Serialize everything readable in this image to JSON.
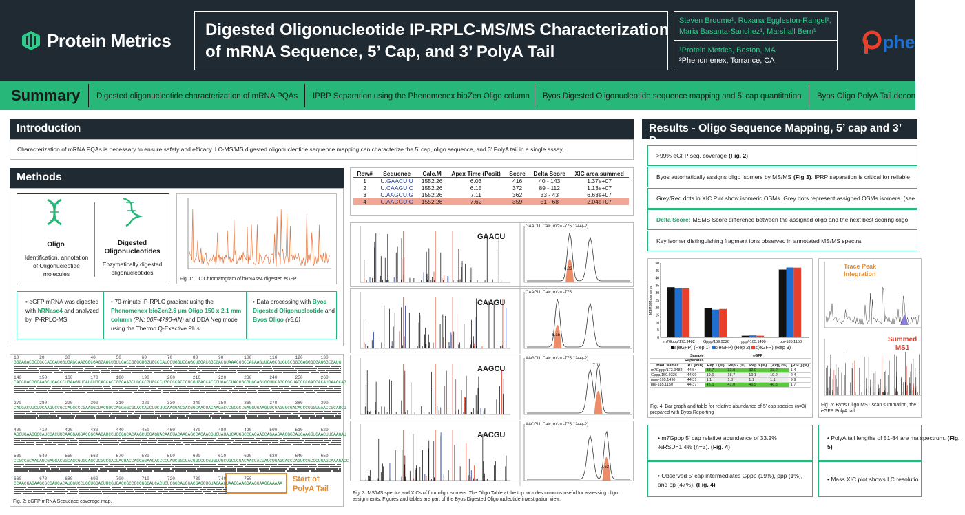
{
  "header": {
    "brand": "Protein Metrics",
    "title_line1": "Digested Oligonucleotide IP-RPLC-MS/MS Characterization",
    "title_line2": "of mRNA Sequence, 5’ Cap, and 3’ PolyA Tail",
    "authors_line1": "Steven Broome¹, Roxana Eggleston-Rangel², ",
    "authors_line2": "Maria Basanta-Sanchez¹, Marshall Bern¹",
    "affil_1": "¹Protein Metrics, Boston, MA",
    "affil_2": "²Phenomenex, Torrance, CA",
    "partner_logo_text": "phe"
  },
  "summary": {
    "title": "Summary",
    "items": [
      "Digested oligonucleotide characterization of mRNA PQAs",
      "IPRP Separation using the Phenomenex bioZen Oligo column",
      "Byos Digested Oligonucleotide sequence mapping and 5’ cap quantitation",
      "Byos Oligo PolyA Tail decon"
    ]
  },
  "introduction": {
    "heading": "Introduction",
    "text": "Characterization of mRNA PQAs is necessary to ensure safety and efficacy. LC-MS/MS digested oligonucleotide sequence mapping can characterize the 5’ cap, oligo sequence, and 3’ PolyA tail in a single assay."
  },
  "methods": {
    "heading": "Methods",
    "oligo_title": "Oligo",
    "oligo_desc": "Identification, annotation of Oligonucleotide molecules",
    "digested_title": "Digested Oligonucleotides",
    "digested_desc": "Enzymatically digested oligonucleotides",
    "fig1_caption": "Fig. 1: TIC Chromatogram of hRNAse4 digested eGFP.",
    "bullet1_a": "eGFP mRNA was digested with ",
    "bullet1_b": "hRNase4",
    "bullet1_c": " and analyzed by IP-RPLC-MS",
    "bullet2_a": "70-minute IP-RPLC gradient using the ",
    "bullet2_b": "Phenomenex bioZen2.6 µm Oligo 150 x 2.1 mm column",
    "bullet2_c": " (PN: 00F-4790-AN)",
    "bullet2_d": " and DDA Neg mode using the Thermo Q-Exactive Plus",
    "bullet3_a": "Data processing with ",
    "bullet3_b": "Byos Digested Oligonucleotide",
    "bullet3_c": " and ",
    "bullet3_d": "Byos Oligo",
    "bullet3_e": " (v5.6)"
  },
  "seqmap": {
    "lines": [
      "GGGAGACGCCGCCACCAUGGUGAGCAAGGGCGAGGAGCUGUUCACCGGGGUGGUGCCCAUCCUGGUCGAGCUGGACGGCGACGUAAACGGCCACAAGUUCAGCGUGUCCGGCGAGGGCGAGGGCGAUG",
      "CACCUACGGCAAGCUGACCCUGAAGUUCAUCUGCACCACCGGCAAGCUGCCCGUGCCCUGGCCCACCCUCGUGACCACCCUGACCUACGGCGUGCAGUGCUUCAGCCGCUACCCCGACCACAUGAAGCAG",
      "CACGACUUCUUCAAGUCCGCCAUGCCCGAAGGCUACGUCCAGGAGCGCACCAUCUUCUUCAAGGACGACGGCAACUACAAGACCCGCGCCGAGGUGAAGUUCGAGGGCGACACCCUGGUGAACCGCAUCG",
      "AGCUGAAGGGCAUCGACUUCAAGGAGGACGGCAACAUCCUGGGGCACAAGCUGGAGUACAACUACAACAGCCACAACGUCUAUAUCAUGGCCGACAAGCAGAAGAACGGCAUCAAGGUGAACUUCAAGAU",
      "CCGCCACAACAUCGAGGACGGCAGCGUGCAGCUCGCCGACCACUACCAGCAGAACACCCCCAUCGGCGACGGCCCCGUGCUGCUGCCCGACAACCACUACCUGAGCACCCAGUCCGCCCUGAGCAAAGACC",
      "CCAACGAGAAGCGCGAUCACAUGGUCCUGCUGGAGUUCGUGACCGCCGCCGGGAUCACUCUCGGCAUGGACGAGCUGUACAAGUAAGGAAGGAAGGAAGGAAAAA"
    ],
    "nums": [
      "10        20        30        40        50        60        70        80        90        100       110       120       130",
      "140       150       160       170       180       190       200       210       220       230       240       250       260",
      "270       280       290       300       310       320       330       340       350       360       370       380       390",
      "400       410       420       430       440       450       460       470       480       490       500       510       520",
      "530       540       550       560       570       580       590       600       610       620       630       640       650",
      "660       670       680       690       700       710       720       730       740       750"
    ],
    "polya_label_1": "Start of",
    "polya_label_2": "PolyA Tail",
    "fig2_caption": "Fig. 2: eGFP mRNA Sequence coverage map."
  },
  "oligo_table": {
    "headers": [
      "Row#",
      "Sequence",
      "Calc.M",
      "Apex Time (Posit)",
      "Score",
      "Delta Score",
      "XIC area summed"
    ],
    "rows": [
      [
        "1",
        "U.GAACU.U",
        "1552.26",
        "6.03",
        "416",
        "40 - 143",
        "1.37e+07"
      ],
      [
        "2",
        "U.CAAGU.C",
        "1552.26",
        "6.15",
        "372",
        "89 - 112",
        "1.13e+07"
      ],
      [
        "3",
        "C.AAGCU.G",
        "1552.26",
        "7.11",
        "362",
        "33 - 43",
        "6.63e+07"
      ],
      [
        "4",
        "C.AACGU.C",
        "1552.26",
        "7.62",
        "359",
        "51 - 68",
        "2.04e+07"
      ]
    ]
  },
  "msms": {
    "labels": [
      "GAACU",
      "CAAGU",
      "AAGCU",
      "AACGU"
    ],
    "xic_titles": [
      "GAACU, Calc. m/z= -775.1244(-2)",
      "CAAGU, Calc. m/z= -775",
      "AAGCU, Calc. m/z= -775.1244(-2)",
      "AACGU, Calc. m/z= -775.1244(-2)"
    ],
    "times": [
      "6.03",
      "6.15",
      "7.11",
      "7.62"
    ],
    "fig3_caption": "Fig. 3: MS/MS spectra and XICs of four oligo isomers. The Oligo Table at the top includes columns useful for assessing oligo assignments. Figures and tables are part of the Byos Digested Oligonucleotide investigation view."
  },
  "results": {
    "heading": "Results  - Oligo Sequence Mapping, 5’ cap and 3’ P",
    "items": [
      ">99% eGFP seq. coverage ",
      "Byos automatically assigns oligo isomers by MS/MS ",
      "Grey/Red dots in XIC Plot show isomeric OSMs. Grey dots represent assigned OSMs isomers. (see",
      "MSMS Score difference between the assigned oligo and the next best scoring oligo.",
      "Key isomer distinguishing fragment ions observed in annotated MS/MS spectra."
    ],
    "item1_ref": "(Fig. 2)",
    "item2_ref": "(Fig 3)",
    "item2_tail": ". IPRP separation is critical for reliable",
    "delta_label": "Delta Score:",
    "fig4_caption": "Fig. 4: Bar graph and table for relative abundance of 5’ cap species (n=3) prepared with Byos Reporting",
    "fig5_caption": "Fig. 5: Byos Oligo MS1 scan summation, the eGFP PolyA tail.",
    "trace_label_1": "Trace Peak",
    "trace_label_2": "Integration",
    "summed_label_1": "Summed",
    "summed_label_2": "MS1",
    "b1": "m7Gppp 5’ cap relative abundance of 33.2% %RSD=1.4% (n=3). ",
    "b1_ref": "(Fig. 4)",
    "b2": "Observed 5’ cap intermediates Gppp (19%), ppp (1%), and pp (47%). ",
    "b2_ref": "(Fig. 4)",
    "b3": "PolyA tail lengths of 51-84 are ma spectrum. ",
    "b3_ref": "(Fig. 5)",
    "b4": "Mass XIC plot shows LC resolutio"
  },
  "cap_table": {
    "sample": "Sample",
    "egfp": "eGFP",
    "headers": [
      "Mod. Names",
      "RT (min)",
      "Rep 1 (%)",
      "Rep 2 (%)",
      "Rep 3 (%)",
      "[Avg] (%)",
      "[RSD] (%)"
    ],
    "replicates": "Replicates",
    "rows": [
      [
        "m7Gppp/173.9482",
        "44.54",
        "33.7",
        "33.0",
        "32.9",
        "33.2",
        "1.4"
      ],
      [
        "Gppp/159.9326",
        "44.99",
        "19.6",
        "18.7",
        "19.1",
        "19.2",
        "2.4"
      ],
      [
        "ppp/-105.1490",
        "44.31",
        "1.1",
        "1.3",
        "1.1",
        "1.1",
        "9.9"
      ],
      [
        "pp/-185.1150",
        "44.37",
        "45.6",
        "47.0",
        "46.9",
        "46.5",
        "1.7"
      ]
    ]
  },
  "chart_data": {
    "type": "bar",
    "categories": [
      "m7Gppp/173.9482",
      "Gppp/159.9326",
      "ppp/-105.1490",
      "pp/-185.1150"
    ],
    "series": [
      {
        "name": "s(eGFP) (Rep 1)",
        "values": [
          33.7,
          19.6,
          1.1,
          45.6
        ],
        "color": "#111111"
      },
      {
        "name": "s(eGFP) (Rep 2)",
        "values": [
          33.0,
          18.7,
          1.3,
          47.0
        ],
        "color": "#1f6fd0"
      },
      {
        "name": "s(eGFP) (Rep 3)",
        "values": [
          32.9,
          19.1,
          1.1,
          46.9
        ],
        "color": "#e8402a"
      }
    ],
    "ylabel": "MSMS/Mass name",
    "ylim": [
      0,
      50
    ],
    "yticks": [
      0,
      5,
      10,
      15,
      20,
      25,
      30,
      35,
      40,
      45,
      50
    ],
    "legend_placement": "bottom"
  }
}
